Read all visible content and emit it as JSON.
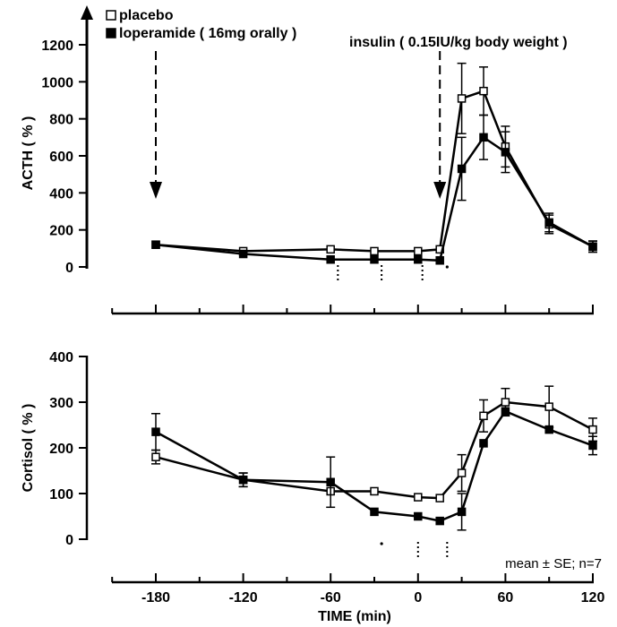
{
  "chart_data": [
    {
      "type": "line",
      "ylabel": "ACTH ( % )",
      "ylim": [
        0,
        1200
      ],
      "yticks": [
        0,
        200,
        400,
        600,
        800,
        1000,
        1200
      ],
      "x_range": [
        -200,
        125
      ],
      "legend": {
        "placement": "top-left",
        "entries": [
          {
            "symbol": "open-square",
            "label": "placebo"
          },
          {
            "symbol": "filled-square",
            "label": "loperamide ( 16mg orally )"
          }
        ]
      },
      "annotations": [
        {
          "label": "",
          "x": -180,
          "type": "dashed-arrow"
        },
        {
          "label": "insulin ( 0.15IU/kg body weight )",
          "x": 15,
          "type": "dashed-arrow"
        }
      ],
      "significance_marks": [
        {
          "x": -55,
          "style": "dotted"
        },
        {
          "x": -25,
          "style": "dotted"
        },
        {
          "x": 3,
          "style": "dotted"
        },
        {
          "x": 20,
          "style": "dot"
        }
      ],
      "series": [
        {
          "name": "placebo",
          "marker": "open-square",
          "x": [
            -180,
            -120,
            -60,
            -30,
            0,
            15,
            30,
            45,
            60,
            90,
            120
          ],
          "y": [
            120,
            85,
            95,
            85,
            85,
            95,
            910,
            950,
            650,
            230,
            110
          ],
          "err": [
            0,
            0,
            0,
            0,
            0,
            0,
            190,
            130,
            110,
            50,
            30
          ]
        },
        {
          "name": "loperamide ( 16mg orally )",
          "marker": "filled-square",
          "x": [
            -180,
            -120,
            -60,
            -30,
            0,
            15,
            30,
            45,
            60,
            90,
            120
          ],
          "y": [
            120,
            70,
            40,
            40,
            40,
            35,
            530,
            700,
            620,
            240,
            110
          ],
          "err": [
            0,
            0,
            0,
            0,
            0,
            0,
            170,
            120,
            110,
            50,
            30
          ]
        }
      ]
    },
    {
      "type": "line",
      "ylabel": "Cortisol ( % )",
      "xlabel": "TIME (min)",
      "ylim": [
        0,
        400
      ],
      "yticks": [
        0,
        100,
        200,
        300,
        400
      ],
      "x_range": [
        -200,
        125
      ],
      "xticks": [
        -180,
        -120,
        -60,
        0,
        60,
        120
      ],
      "annotation_text": "mean ± SE; n=7",
      "significance_marks": [
        {
          "x": -25,
          "style": "dot"
        },
        {
          "x": 0,
          "style": "dotted"
        },
        {
          "x": 20,
          "style": "dotted"
        }
      ],
      "series": [
        {
          "name": "placebo",
          "marker": "open-square",
          "x": [
            -180,
            -120,
            -60,
            -30,
            0,
            15,
            30,
            45,
            60,
            90,
            120
          ],
          "y": [
            180,
            130,
            105,
            105,
            92,
            90,
            145,
            270,
            300,
            290,
            240
          ],
          "err": [
            15,
            15,
            0,
            0,
            0,
            0,
            40,
            35,
            30,
            45,
            25
          ]
        },
        {
          "name": "loperamide ( 16mg orally )",
          "marker": "filled-square",
          "x": [
            -180,
            -120,
            -60,
            -30,
            0,
            15,
            30,
            45,
            60,
            90,
            120
          ],
          "y": [
            235,
            130,
            125,
            60,
            50,
            40,
            60,
            210,
            280,
            240,
            205
          ],
          "err": [
            40,
            15,
            55,
            0,
            0,
            0,
            40,
            0,
            0,
            0,
            20
          ]
        }
      ]
    }
  ]
}
